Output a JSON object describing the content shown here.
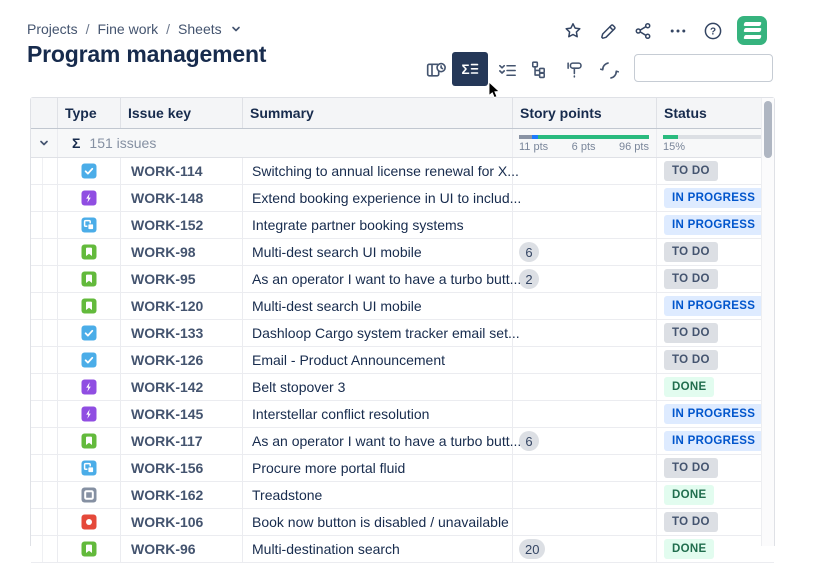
{
  "breadcrumb": {
    "items": [
      "Projects",
      "Fine work",
      "Sheets"
    ],
    "separator": "/"
  },
  "page": {
    "title": "Program management"
  },
  "header_icons": [
    "star-icon",
    "edit-pencil-icon",
    "share-icon",
    "more-ellipsis-icon",
    "help-icon",
    "structure-logo"
  ],
  "help_glyph": "?",
  "toolbar": {
    "icons": [
      "perspective-clock-icon",
      "sum-columns-icon",
      "checklist-icon",
      "hierarchy-icon",
      "formatter-icon",
      "sync-icon"
    ],
    "active_index": 1
  },
  "search": {
    "value": "",
    "placeholder": ""
  },
  "table": {
    "columns": [
      "Type",
      "Issue key",
      "Summary",
      "Story points",
      "Status"
    ],
    "summary": {
      "sigma": "Σ",
      "count_label": "151 issues",
      "points_total": {
        "todo_pts": 11,
        "in_progress_pts": 6,
        "done_pts": 96
      },
      "points_labels": [
        "11 pts",
        "6 pts",
        "96 pts"
      ],
      "points_bar_segments": [
        {
          "pct": 9.7,
          "color": "#8993A4"
        },
        {
          "pct": 5.3,
          "color": "#1D7AFC"
        },
        {
          "pct": 85.0,
          "color": "#2ABB7F"
        }
      ],
      "status_bar": {
        "pct": 15,
        "color": "#2ABB7F",
        "track": "#DCDFE4"
      },
      "status_pct_label": "15%"
    },
    "rows": [
      {
        "type": "task",
        "key": "WORK-114",
        "summary": "Switching to annual license renewal for X...",
        "points": "",
        "status": "TO DO"
      },
      {
        "type": "epic",
        "key": "WORK-148",
        "summary": "Extend booking experience in UI to includ...",
        "points": "",
        "status": "IN PROGRESS"
      },
      {
        "type": "change",
        "key": "WORK-152",
        "summary": "Integrate partner booking systems",
        "points": "",
        "status": "IN PROGRESS"
      },
      {
        "type": "story",
        "key": "WORK-98",
        "summary": "Multi-dest search UI mobile",
        "points": "6",
        "status": "TO DO"
      },
      {
        "type": "story",
        "key": "WORK-95",
        "summary": "As an operator I want to have a turbo butt...",
        "points": "2",
        "status": "TO DO"
      },
      {
        "type": "story",
        "key": "WORK-120",
        "summary": "Multi-dest search UI mobile",
        "points": "",
        "status": "IN PROGRESS"
      },
      {
        "type": "task",
        "key": "WORK-133",
        "summary": "Dashloop Cargo system tracker email set...",
        "points": "",
        "status": "TO DO"
      },
      {
        "type": "task",
        "key": "WORK-126",
        "summary": "Email - Product Announcement",
        "points": "",
        "status": "TO DO"
      },
      {
        "type": "epic",
        "key": "WORK-142",
        "summary": "Belt stopover 3",
        "points": "",
        "status": "DONE"
      },
      {
        "type": "epic",
        "key": "WORK-145",
        "summary": "Interstellar conflict resolution",
        "points": "",
        "status": "IN PROGRESS"
      },
      {
        "type": "story",
        "key": "WORK-117",
        "summary": "As an operator I want to have a turbo butt...",
        "points": "6",
        "status": "IN PROGRESS"
      },
      {
        "type": "change",
        "key": "WORK-156",
        "summary": "Procure more portal fluid",
        "points": "",
        "status": "TO DO"
      },
      {
        "type": "spike",
        "key": "WORK-162",
        "summary": "Treadstone",
        "points": "",
        "status": "DONE"
      },
      {
        "type": "bug",
        "key": "WORK-106",
        "summary": "Book now button is disabled / unavailable",
        "points": "",
        "status": "TO DO"
      },
      {
        "type": "story",
        "key": "WORK-96",
        "summary": "Multi-destination search",
        "points": "20",
        "status": "DONE"
      }
    ]
  },
  "colors": {
    "active_button": "#253858",
    "type_task": "#4BADE8",
    "type_epic": "#904EE2",
    "type_story": "#63BA3C",
    "type_change": "#4BADE8",
    "type_spike": "#8590A2",
    "type_bug": "#E5493A",
    "badge_todo_bg": "#DCDFE4",
    "badge_inprog_bg": "#DEEBFF",
    "badge_done_bg": "#E2FCEF",
    "logo_green": "#36B37E"
  }
}
